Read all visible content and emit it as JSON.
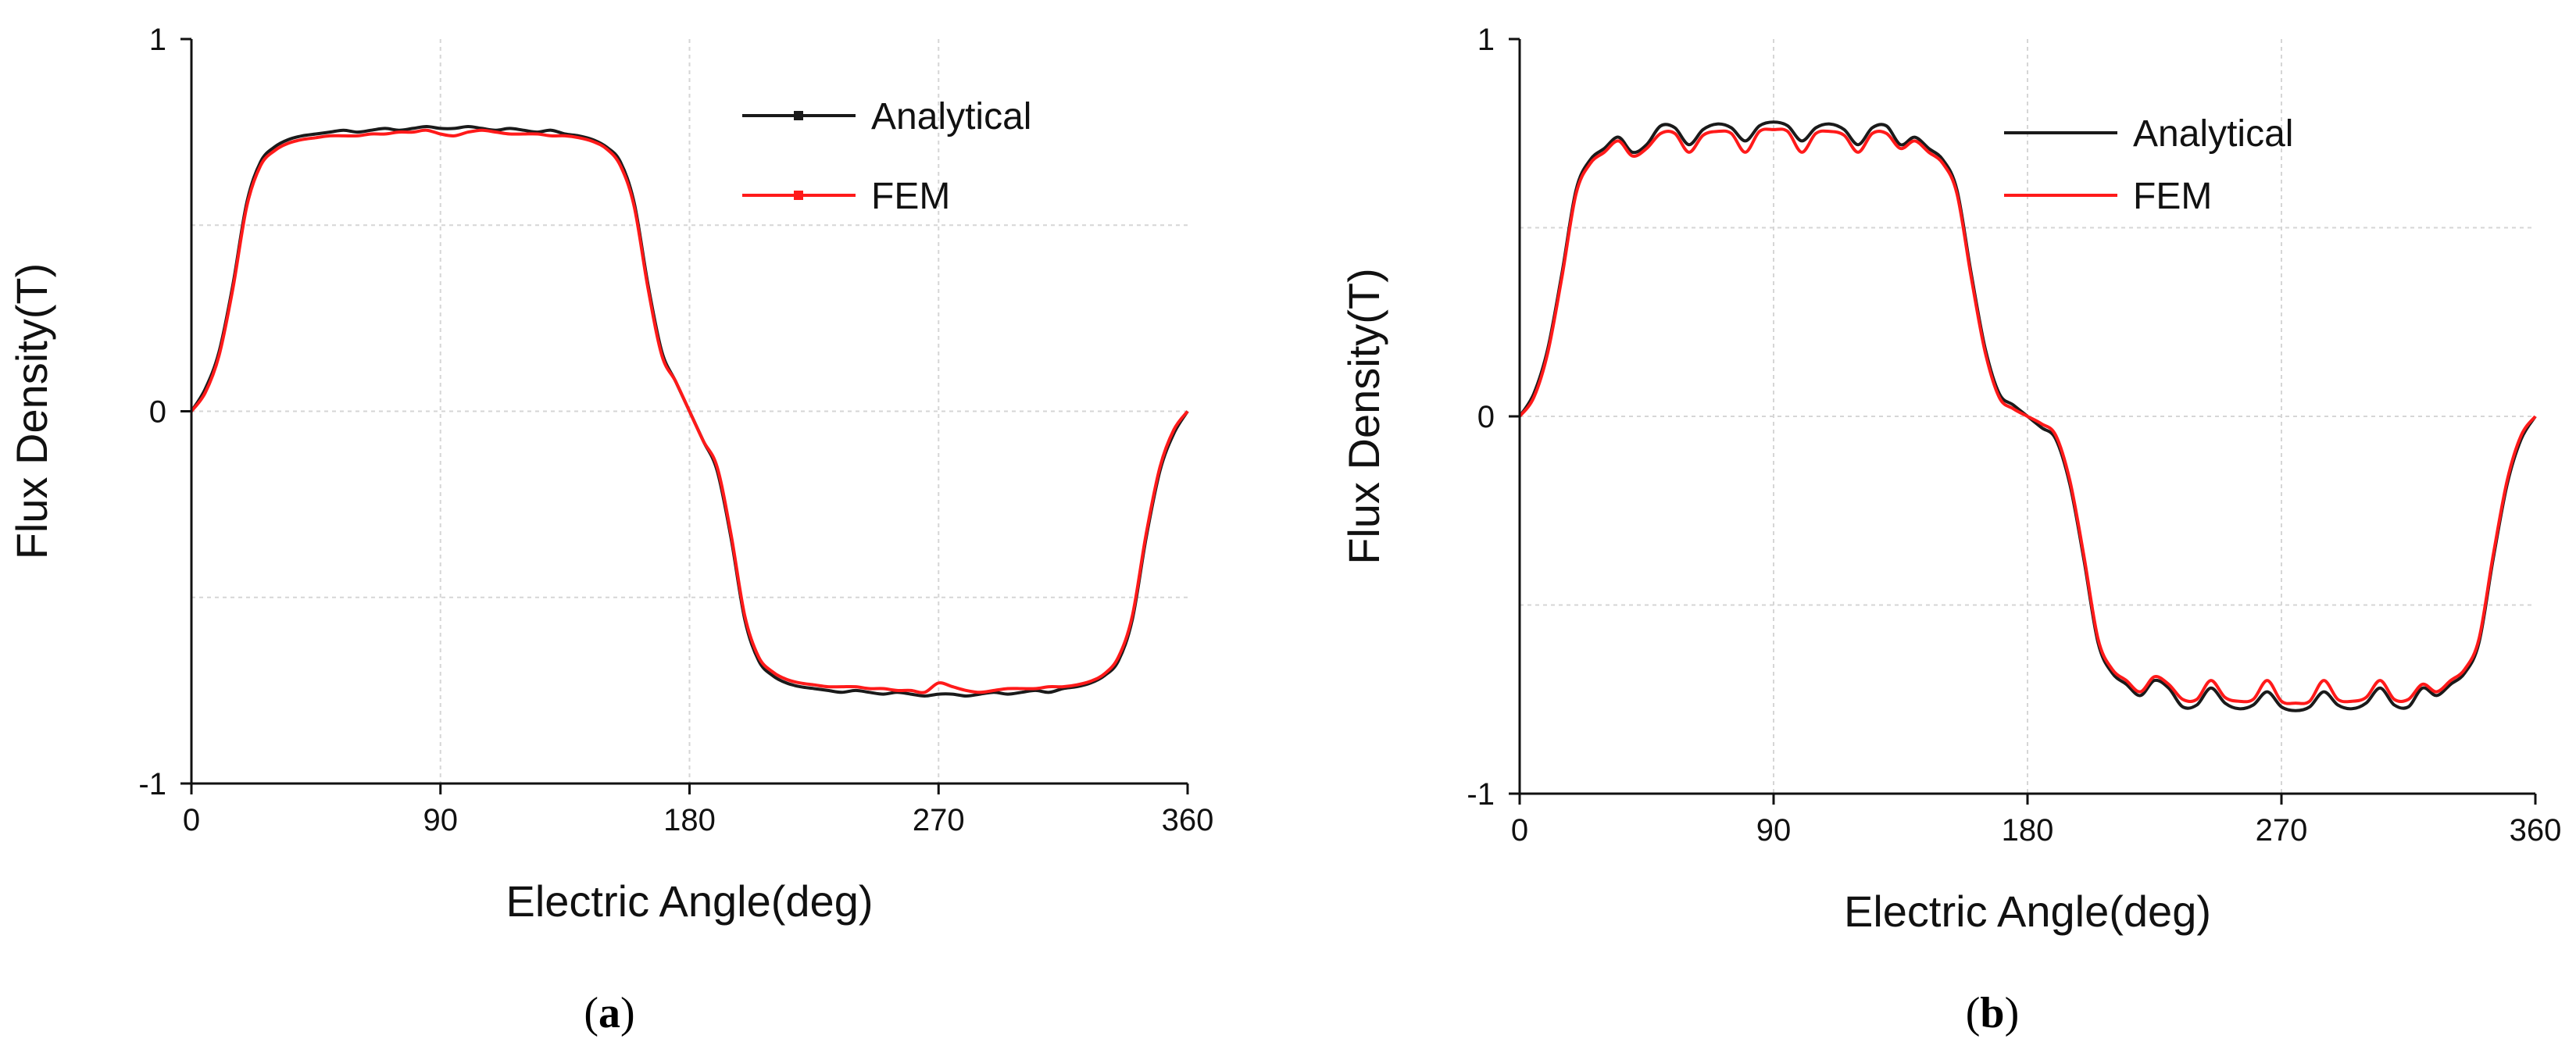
{
  "chart_data": [
    {
      "type": "line",
      "panel": "a",
      "caption_open": "(",
      "caption_letter": "a",
      "caption_close": ")",
      "xlabel": "Electric Angle(deg)",
      "ylabel": "Flux Density(T)",
      "xlim": [
        0,
        360
      ],
      "ylim": [
        -1,
        1
      ],
      "xticks": [
        0,
        90,
        180,
        270,
        360
      ],
      "xtick_labels": [
        "0",
        "90",
        "180",
        "270",
        "360"
      ],
      "yticks": [
        -1,
        0,
        1
      ],
      "ytick_labels": [
        "-1",
        "0",
        "1"
      ],
      "grid": true,
      "legend_position": "top-right",
      "series": [
        {
          "name": "Analytical",
          "color": "#1a1a1a",
          "marker": true,
          "x": [
            0,
            5,
            10,
            15,
            20,
            25,
            30,
            35,
            40,
            45,
            50,
            55,
            60,
            65,
            70,
            75,
            80,
            85,
            90,
            95,
            100,
            105,
            110,
            115,
            120,
            125,
            130,
            135,
            140,
            145,
            150,
            155,
            160,
            165,
            170,
            175,
            180,
            185,
            190,
            195,
            200,
            205,
            210,
            215,
            220,
            225,
            230,
            235,
            240,
            245,
            250,
            255,
            260,
            265,
            270,
            275,
            280,
            285,
            290,
            295,
            300,
            305,
            310,
            315,
            320,
            325,
            330,
            335,
            340,
            345,
            350,
            355,
            360
          ],
          "y": [
            0.0,
            0.06,
            0.16,
            0.34,
            0.56,
            0.67,
            0.71,
            0.73,
            0.74,
            0.745,
            0.75,
            0.755,
            0.75,
            0.755,
            0.76,
            0.755,
            0.76,
            0.765,
            0.76,
            0.76,
            0.765,
            0.76,
            0.755,
            0.76,
            0.755,
            0.75,
            0.755,
            0.745,
            0.74,
            0.73,
            0.71,
            0.67,
            0.56,
            0.34,
            0.16,
            0.08,
            0.0,
            -0.08,
            -0.16,
            -0.34,
            -0.56,
            -0.67,
            -0.71,
            -0.73,
            -0.74,
            -0.745,
            -0.75,
            -0.755,
            -0.75,
            -0.755,
            -0.76,
            -0.755,
            -0.76,
            -0.765,
            -0.76,
            -0.76,
            -0.765,
            -0.76,
            -0.755,
            -0.76,
            -0.755,
            -0.75,
            -0.755,
            -0.745,
            -0.74,
            -0.73,
            -0.71,
            -0.67,
            -0.56,
            -0.34,
            -0.16,
            -0.06,
            0.0
          ]
        },
        {
          "name": "FEM",
          "color": "#ff1a1a",
          "marker": true,
          "x": [
            0,
            5,
            10,
            15,
            20,
            25,
            30,
            35,
            40,
            45,
            50,
            55,
            60,
            65,
            70,
            75,
            80,
            85,
            90,
            95,
            100,
            105,
            110,
            115,
            120,
            125,
            130,
            135,
            140,
            145,
            150,
            155,
            160,
            165,
            170,
            175,
            180,
            185,
            190,
            195,
            200,
            205,
            210,
            215,
            220,
            225,
            230,
            235,
            240,
            245,
            250,
            255,
            260,
            265,
            270,
            275,
            280,
            285,
            290,
            295,
            300,
            305,
            310,
            315,
            320,
            325,
            330,
            335,
            340,
            345,
            350,
            355,
            360
          ],
          "y": [
            0.0,
            0.05,
            0.15,
            0.33,
            0.55,
            0.66,
            0.7,
            0.72,
            0.73,
            0.735,
            0.74,
            0.74,
            0.74,
            0.745,
            0.745,
            0.75,
            0.75,
            0.755,
            0.745,
            0.74,
            0.75,
            0.755,
            0.75,
            0.745,
            0.745,
            0.745,
            0.74,
            0.74,
            0.735,
            0.725,
            0.705,
            0.66,
            0.55,
            0.33,
            0.15,
            0.08,
            0.0,
            -0.08,
            -0.15,
            -0.33,
            -0.55,
            -0.66,
            -0.7,
            -0.72,
            -0.73,
            -0.735,
            -0.74,
            -0.74,
            -0.74,
            -0.745,
            -0.745,
            -0.75,
            -0.75,
            -0.755,
            -0.73,
            -0.74,
            -0.75,
            -0.755,
            -0.75,
            -0.745,
            -0.745,
            -0.745,
            -0.74,
            -0.74,
            -0.735,
            -0.725,
            -0.705,
            -0.66,
            -0.55,
            -0.33,
            -0.15,
            -0.05,
            0.0
          ]
        }
      ]
    },
    {
      "type": "line",
      "panel": "b",
      "caption_open": "(",
      "caption_letter": "b",
      "caption_close": ")",
      "xlabel": "Electric Angle(deg)",
      "ylabel": "Flux Density(T)",
      "xlim": [
        0,
        360
      ],
      "ylim": [
        -1,
        1
      ],
      "xticks": [
        0,
        90,
        180,
        270,
        360
      ],
      "xtick_labels": [
        "0",
        "90",
        "180",
        "270",
        "360"
      ],
      "yticks": [
        -1,
        0,
        1
      ],
      "ytick_labels": [
        "-1",
        "0",
        "1"
      ],
      "grid": true,
      "legend_position": "top-right",
      "series": [
        {
          "name": "Analytical",
          "color": "#1a1a1a",
          "marker": false,
          "x": [
            0,
            5,
            10,
            15,
            20,
            25,
            30,
            35,
            40,
            45,
            50,
            55,
            60,
            65,
            70,
            75,
            80,
            85,
            90,
            95,
            100,
            105,
            110,
            115,
            120,
            125,
            130,
            135,
            140,
            145,
            150,
            155,
            160,
            165,
            170,
            175,
            180,
            185,
            190,
            195,
            200,
            205,
            210,
            215,
            220,
            225,
            230,
            235,
            240,
            245,
            250,
            255,
            260,
            265,
            270,
            275,
            280,
            285,
            290,
            295,
            300,
            305,
            310,
            315,
            320,
            325,
            330,
            335,
            340,
            345,
            350,
            355,
            360
          ],
          "y": [
            0.0,
            0.06,
            0.18,
            0.38,
            0.6,
            0.68,
            0.71,
            0.74,
            0.7,
            0.72,
            0.77,
            0.765,
            0.72,
            0.76,
            0.775,
            0.765,
            0.73,
            0.77,
            0.78,
            0.77,
            0.73,
            0.765,
            0.775,
            0.76,
            0.72,
            0.765,
            0.77,
            0.72,
            0.74,
            0.71,
            0.68,
            0.6,
            0.38,
            0.18,
            0.06,
            0.03,
            0.0,
            -0.03,
            -0.06,
            -0.18,
            -0.38,
            -0.6,
            -0.68,
            -0.71,
            -0.74,
            -0.7,
            -0.72,
            -0.77,
            -0.765,
            -0.72,
            -0.76,
            -0.775,
            -0.765,
            -0.73,
            -0.77,
            -0.78,
            -0.77,
            -0.73,
            -0.765,
            -0.775,
            -0.76,
            -0.72,
            -0.765,
            -0.77,
            -0.72,
            -0.74,
            -0.71,
            -0.68,
            -0.6,
            -0.38,
            -0.18,
            -0.06,
            0.0
          ]
        },
        {
          "name": "FEM",
          "color": "#ff1a1a",
          "marker": false,
          "x": [
            0,
            5,
            10,
            15,
            20,
            25,
            30,
            35,
            40,
            45,
            50,
            55,
            60,
            65,
            70,
            75,
            80,
            85,
            90,
            95,
            100,
            105,
            110,
            115,
            120,
            125,
            130,
            135,
            140,
            145,
            150,
            155,
            160,
            165,
            170,
            175,
            180,
            185,
            190,
            195,
            200,
            205,
            210,
            215,
            220,
            225,
            230,
            235,
            240,
            245,
            250,
            255,
            260,
            265,
            270,
            275,
            280,
            285,
            290,
            295,
            300,
            305,
            310,
            315,
            320,
            325,
            330,
            335,
            340,
            345,
            350,
            355,
            360
          ],
          "y": [
            0.0,
            0.05,
            0.17,
            0.37,
            0.59,
            0.67,
            0.7,
            0.73,
            0.69,
            0.71,
            0.75,
            0.75,
            0.7,
            0.745,
            0.755,
            0.75,
            0.7,
            0.755,
            0.76,
            0.755,
            0.7,
            0.75,
            0.755,
            0.745,
            0.7,
            0.75,
            0.75,
            0.71,
            0.73,
            0.7,
            0.67,
            0.59,
            0.37,
            0.17,
            0.05,
            0.02,
            0.0,
            -0.02,
            -0.05,
            -0.17,
            -0.37,
            -0.59,
            -0.67,
            -0.7,
            -0.73,
            -0.69,
            -0.71,
            -0.75,
            -0.75,
            -0.7,
            -0.745,
            -0.755,
            -0.75,
            -0.7,
            -0.755,
            -0.76,
            -0.755,
            -0.7,
            -0.75,
            -0.755,
            -0.745,
            -0.7,
            -0.75,
            -0.75,
            -0.71,
            -0.73,
            -0.7,
            -0.67,
            -0.59,
            -0.37,
            -0.17,
            -0.05,
            0.0
          ]
        }
      ]
    }
  ]
}
